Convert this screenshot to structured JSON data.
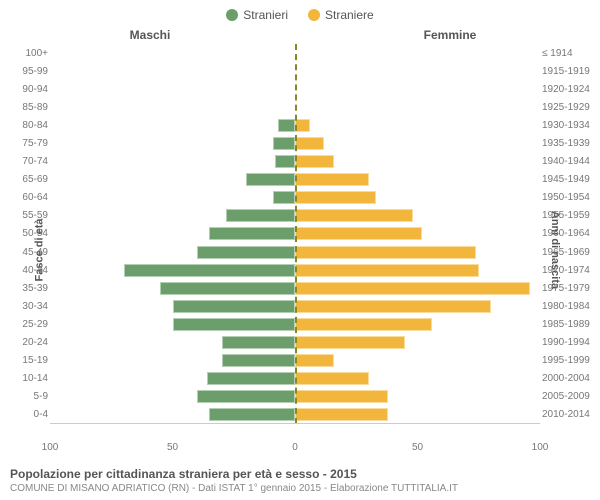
{
  "legend": {
    "male": {
      "label": "Stranieri",
      "color": "#6b9e6b"
    },
    "female": {
      "label": "Straniere",
      "color": "#f2b63c"
    }
  },
  "headers": {
    "male": "Maschi",
    "female": "Femmine"
  },
  "axis_titles": {
    "left": "Fasce di età",
    "right": "Anni di nascita"
  },
  "chart": {
    "type": "population-pyramid",
    "x_max": 100,
    "x_ticks_left": [
      100,
      50,
      0
    ],
    "x_ticks_right": [
      50,
      100
    ],
    "grid_color": "#e0e0e0",
    "background": "#ffffff",
    "centerline_color": "#888820",
    "label_fontsize": 10,
    "label_color": "#777777",
    "axis_title_fontsize": 11,
    "bar_height_ratio": 0.72,
    "rows": [
      {
        "age": "100+",
        "birth": "≤ 1914",
        "m": 0,
        "f": 0
      },
      {
        "age": "95-99",
        "birth": "1915-1919",
        "m": 0,
        "f": 0
      },
      {
        "age": "90-94",
        "birth": "1920-1924",
        "m": 0,
        "f": 0
      },
      {
        "age": "85-89",
        "birth": "1925-1929",
        "m": 0,
        "f": 0
      },
      {
        "age": "80-84",
        "birth": "1930-1934",
        "m": 7,
        "f": 6
      },
      {
        "age": "75-79",
        "birth": "1935-1939",
        "m": 9,
        "f": 12
      },
      {
        "age": "70-74",
        "birth": "1940-1944",
        "m": 8,
        "f": 16
      },
      {
        "age": "65-69",
        "birth": "1945-1949",
        "m": 20,
        "f": 30
      },
      {
        "age": "60-64",
        "birth": "1950-1954",
        "m": 9,
        "f": 33
      },
      {
        "age": "55-59",
        "birth": "1955-1959",
        "m": 28,
        "f": 48
      },
      {
        "age": "50-54",
        "birth": "1960-1964",
        "m": 35,
        "f": 52
      },
      {
        "age": "45-49",
        "birth": "1965-1969",
        "m": 40,
        "f": 74
      },
      {
        "age": "40-44",
        "birth": "1970-1974",
        "m": 70,
        "f": 75
      },
      {
        "age": "35-39",
        "birth": "1975-1979",
        "m": 55,
        "f": 96
      },
      {
        "age": "30-34",
        "birth": "1980-1984",
        "m": 50,
        "f": 80
      },
      {
        "age": "25-29",
        "birth": "1985-1989",
        "m": 50,
        "f": 56
      },
      {
        "age": "20-24",
        "birth": "1990-1994",
        "m": 30,
        "f": 45
      },
      {
        "age": "15-19",
        "birth": "1995-1999",
        "m": 30,
        "f": 16
      },
      {
        "age": "10-14",
        "birth": "2000-2004",
        "m": 36,
        "f": 30
      },
      {
        "age": "5-9",
        "birth": "2005-2009",
        "m": 40,
        "f": 38
      },
      {
        "age": "0-4",
        "birth": "2010-2014",
        "m": 35,
        "f": 38
      }
    ]
  },
  "footer": {
    "title": "Popolazione per cittadinanza straniera per età e sesso - 2015",
    "sub": "COMUNE DI MISANO ADRIATICO (RN) - Dati ISTAT 1° gennaio 2015 - Elaborazione TUTTITALIA.IT"
  }
}
